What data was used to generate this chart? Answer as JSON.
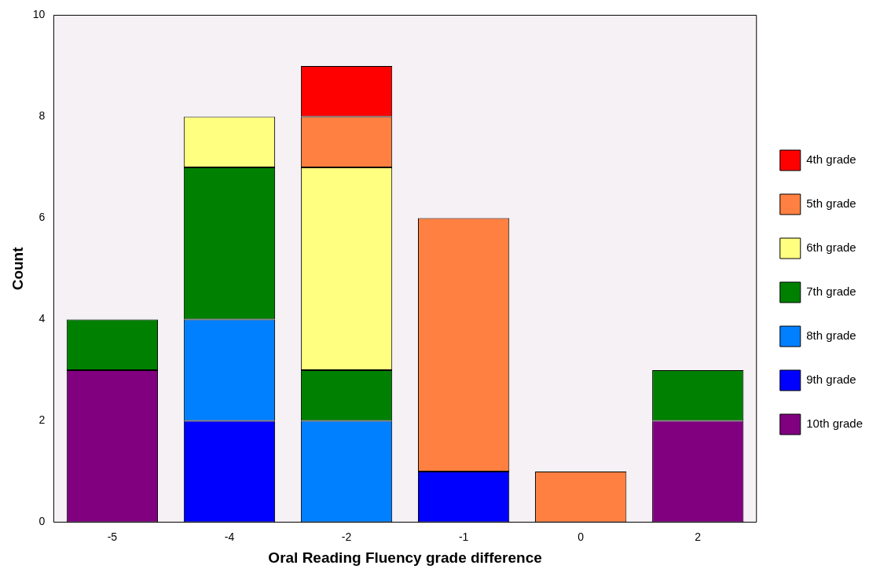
{
  "chart_data": {
    "type": "bar",
    "xlabel": "Oral Reading Fluency grade difference",
    "ylabel": "Count",
    "categories": [
      "-5",
      "-4",
      "-2",
      "-1",
      "0",
      "2"
    ],
    "stacked": true,
    "ylim": [
      0,
      10
    ],
    "yticks": [
      0,
      2,
      4,
      6,
      8,
      10
    ],
    "grid": false,
    "legend": "right",
    "series": [
      {
        "name": "10th grade",
        "color": "#800080",
        "values": [
          3,
          0,
          0,
          0,
          0,
          2
        ]
      },
      {
        "name": "9th grade",
        "color": "#0000ff",
        "values": [
          0,
          2,
          0,
          1,
          0,
          0
        ]
      },
      {
        "name": "8th grade",
        "color": "#0080ff",
        "values": [
          0,
          2,
          2,
          0,
          0,
          0
        ]
      },
      {
        "name": "7th grade",
        "color": "#008000",
        "values": [
          1,
          3,
          1,
          0,
          0,
          1
        ]
      },
      {
        "name": "6th grade",
        "color": "#ffff80",
        "values": [
          0,
          1,
          4,
          0,
          0,
          0
        ]
      },
      {
        "name": "5th grade",
        "color": "#ff8040",
        "values": [
          0,
          0,
          1,
          5,
          1,
          0
        ]
      },
      {
        "name": "4th grade",
        "color": "#ff0000",
        "values": [
          0,
          0,
          1,
          0,
          0,
          0
        ]
      }
    ]
  }
}
